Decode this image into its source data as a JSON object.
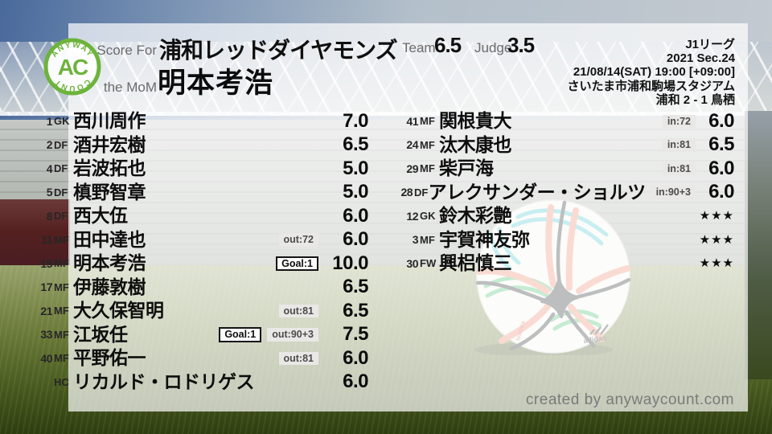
{
  "logo": {
    "arc_top": "ANYWAY",
    "center": "AC",
    "arc_bottom": "COUNT"
  },
  "header": {
    "score_for_label": "Score For",
    "team_name": "浦和レッドダイヤモンズ",
    "mom_label": "the MoM",
    "mom_name": "明本考浩",
    "team_label": "Team",
    "team_score": "6.5",
    "judge_label": "Judge",
    "judge_score": "3.5"
  },
  "match_info": {
    "league": "J1リーグ",
    "season": "2021 Sec.24",
    "kickoff": "21/08/14(SAT) 19:00 [+09:00]",
    "venue": "さいたま市浦和駒場スタジアム",
    "result": "浦和 2 - 1 鳥栖"
  },
  "chart_data": {
    "type": "table",
    "title": "Score For 浦和レッドダイヤモンズ / the MoM 明本考浩",
    "columns": [
      "number",
      "position",
      "name",
      "events",
      "rating"
    ],
    "starters_and_staff": [
      {
        "num": "1",
        "pos": "GK",
        "name": "西川周作",
        "badges": [],
        "rating": "7.0"
      },
      {
        "num": "2",
        "pos": "DF",
        "name": "酒井宏樹",
        "badges": [],
        "rating": "6.5"
      },
      {
        "num": "4",
        "pos": "DF",
        "name": "岩波拓也",
        "badges": [],
        "rating": "5.0"
      },
      {
        "num": "5",
        "pos": "DF",
        "name": "槙野智章",
        "badges": [],
        "rating": "5.0"
      },
      {
        "num": "8",
        "pos": "DF",
        "name": "西大伍",
        "badges": [],
        "rating": "6.0"
      },
      {
        "num": "11",
        "pos": "MF",
        "name": "田中達也",
        "badges": [
          {
            "type": "sub",
            "label": "out:72"
          }
        ],
        "rating": "6.0"
      },
      {
        "num": "15",
        "pos": "MF",
        "name": "明本考浩",
        "badges": [
          {
            "type": "goal",
            "label": "Goal:1"
          }
        ],
        "rating": "10.0"
      },
      {
        "num": "17",
        "pos": "MF",
        "name": "伊藤敦樹",
        "badges": [],
        "rating": "6.5"
      },
      {
        "num": "21",
        "pos": "MF",
        "name": "大久保智明",
        "badges": [
          {
            "type": "sub",
            "label": "out:81"
          }
        ],
        "rating": "6.5"
      },
      {
        "num": "33",
        "pos": "MF",
        "name": "江坂任",
        "badges": [
          {
            "type": "goal",
            "label": "Goal:1"
          },
          {
            "type": "sub",
            "label": "out:90+3"
          }
        ],
        "rating": "7.5"
      },
      {
        "num": "40",
        "pos": "MF",
        "name": "平野佑一",
        "badges": [
          {
            "type": "sub",
            "label": "out:81"
          }
        ],
        "rating": "6.0"
      },
      {
        "num": "",
        "pos": "HC",
        "name": "リカルド・ロドリゲス",
        "badges": [],
        "rating": "6.0"
      }
    ],
    "substitutes": [
      {
        "num": "41",
        "pos": "MF",
        "name": "関根貴大",
        "badges": [
          {
            "type": "sub",
            "label": "in:72"
          }
        ],
        "rating": "6.0"
      },
      {
        "num": "24",
        "pos": "MF",
        "name": "汰木康也",
        "badges": [
          {
            "type": "sub",
            "label": "in:81"
          }
        ],
        "rating": "6.5"
      },
      {
        "num": "29",
        "pos": "MF",
        "name": "柴戸海",
        "badges": [
          {
            "type": "sub",
            "label": "in:81"
          }
        ],
        "rating": "6.0"
      },
      {
        "num": "28",
        "pos": "DF",
        "name": "アレクサンダー・ショルツ",
        "badges": [
          {
            "type": "sub",
            "label": "in:90+3"
          }
        ],
        "rating": "6.0"
      },
      {
        "num": "12",
        "pos": "GK",
        "name": "鈴木彩艶",
        "badges": [],
        "rating": "***"
      },
      {
        "num": "3",
        "pos": "MF",
        "name": "宇賀神友弥",
        "badges": [],
        "rating": "***"
      },
      {
        "num": "30",
        "pos": "FW",
        "name": "興梠慎三",
        "badges": [],
        "rating": "***"
      }
    ]
  },
  "ball": {
    "brand": "adidas",
    "model": "brazuca"
  },
  "footer": {
    "credit": "created by anywaycount.com"
  },
  "colors": {
    "logo_green": "#6db33c",
    "text_dark": "#0e0e0e",
    "muted_gray": "#6b6b6b",
    "chip_bg": "#e9e8e6",
    "credit_gray": "#7a7a7a",
    "panel": "rgba(255,255,255,0.70)"
  }
}
